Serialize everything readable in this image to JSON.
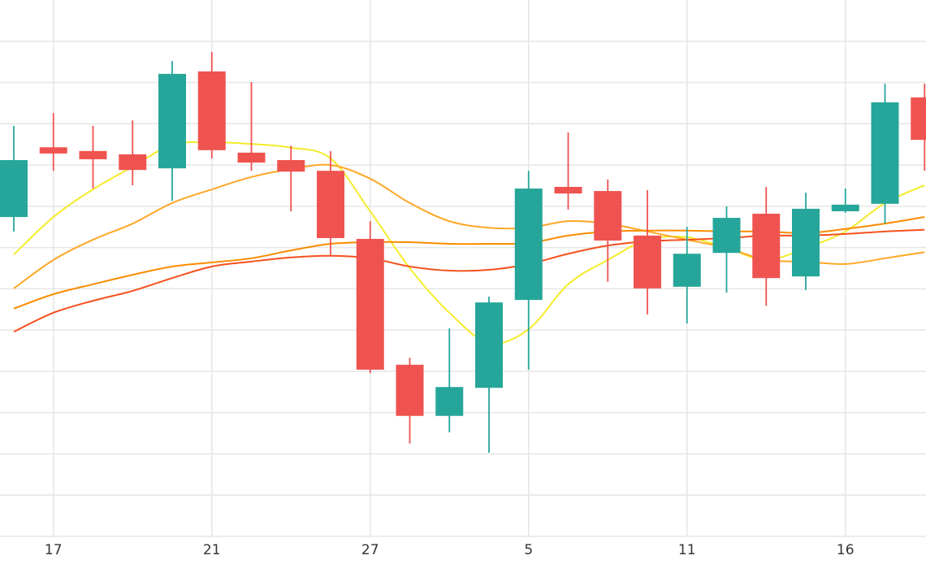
{
  "chart_data": {
    "type": "candlestick",
    "categories": [
      null,
      "17",
      null,
      null,
      null,
      "21",
      null,
      null,
      null,
      "27",
      null,
      null,
      null,
      "5",
      null,
      null,
      null,
      "11",
      null,
      null,
      null,
      "16",
      null,
      null
    ],
    "open": [
      7.74,
      9.43,
      9.34,
      9.26,
      8.92,
      11.27,
      9.3,
      9.12,
      8.86,
      7.21,
      4.16,
      2.92,
      3.6,
      5.73,
      8.47,
      8.37,
      7.29,
      6.05,
      6.87,
      7.82,
      6.3,
      7.88,
      8.06,
      10.64
    ],
    "high": [
      9.95,
      10.26,
      9.95,
      10.08,
      11.52,
      11.74,
      11.01,
      9.47,
      9.34,
      7.64,
      4.33,
      5.04,
      5.81,
      8.86,
      9.79,
      8.65,
      8.39,
      7.5,
      8.0,
      8.47,
      8.33,
      8.43,
      10.97,
      10.97
    ],
    "low": [
      7.39,
      8.86,
      8.43,
      8.51,
      8.13,
      9.16,
      8.86,
      7.88,
      6.82,
      3.96,
      2.25,
      2.52,
      2.03,
      4.04,
      7.92,
      6.17,
      5.38,
      5.16,
      5.91,
      5.59,
      5.97,
      7.84,
      7.58,
      8.86
    ],
    "close": [
      9.12,
      9.28,
      9.14,
      8.88,
      11.21,
      9.36,
      9.06,
      8.84,
      7.23,
      4.04,
      2.92,
      3.62,
      5.67,
      8.43,
      8.31,
      7.17,
      6.01,
      6.85,
      7.72,
      6.26,
      7.94,
      8.04,
      10.52,
      9.61
    ],
    "up_color": "#26a69a",
    "down_color": "#ef5350",
    "series": [
      {
        "color": "#f5eb2a",
        "values": [
          6.83,
          7.74,
          8.41,
          8.96,
          9.49,
          9.55,
          9.51,
          9.42,
          9.16,
          7.88,
          6.5,
          5.42,
          4.69,
          5.02,
          6.11,
          6.7,
          7.19,
          7.25,
          6.99,
          6.7,
          6.99,
          7.39,
          8.08,
          8.51
        ]
      },
      {
        "color": "#ffa726",
        "values": [
          6.01,
          6.7,
          7.19,
          7.58,
          8.08,
          8.41,
          8.71,
          8.9,
          9.0,
          8.67,
          8.08,
          7.64,
          7.48,
          7.48,
          7.64,
          7.58,
          7.39,
          7.19,
          6.99,
          6.7,
          6.66,
          6.6,
          6.74,
          6.89
        ]
      },
      {
        "color": "#fb8c00",
        "values": [
          5.52,
          5.87,
          6.11,
          6.34,
          6.54,
          6.64,
          6.74,
          6.93,
          7.09,
          7.13,
          7.13,
          7.09,
          7.09,
          7.11,
          7.29,
          7.39,
          7.41,
          7.41,
          7.39,
          7.39,
          7.35,
          7.45,
          7.58,
          7.74
        ]
      },
      {
        "color": "#f4511e",
        "values": [
          4.96,
          5.42,
          5.71,
          5.95,
          6.26,
          6.54,
          6.66,
          6.76,
          6.8,
          6.74,
          6.54,
          6.44,
          6.46,
          6.6,
          6.85,
          7.05,
          7.15,
          7.19,
          7.23,
          7.29,
          7.29,
          7.33,
          7.39,
          7.43
        ]
      }
    ],
    "ylim": [
      0,
      13
    ],
    "yticks": [
      0,
      1,
      2,
      3,
      4,
      5,
      6,
      7,
      8,
      9,
      10,
      11,
      12
    ],
    "grid": true
  }
}
